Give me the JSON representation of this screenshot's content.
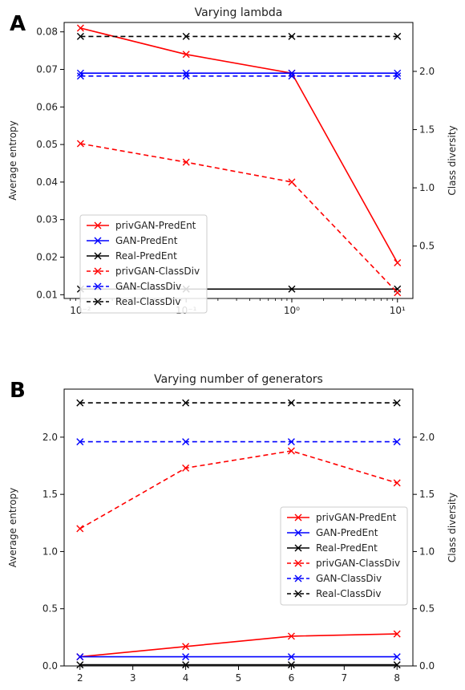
{
  "chart_data": [
    {
      "type": "line",
      "panel_label": "A",
      "title": "Varying lambda",
      "xlabel": "",
      "ylabel": "Average entropy",
      "ylabel_right": "Class diversity",
      "xscale": "log",
      "x": [
        0.01,
        0.1,
        1,
        10
      ],
      "xtick_labels": [
        "10⁻²",
        "10⁻¹",
        "10⁰",
        "10¹"
      ],
      "xlim": [
        0.007,
        14
      ],
      "ylim": [
        0.009,
        0.0825
      ],
      "ylim_right": [
        0.05,
        2.42
      ],
      "yticks": [
        "0.01",
        "0.02",
        "0.03",
        "0.04",
        "0.05",
        "0.06",
        "0.07",
        "0.08"
      ],
      "yticks_right": [
        "0.5",
        "1.0",
        "1.5",
        "2.0"
      ],
      "legend_position": "center-left",
      "grid": false,
      "series": [
        {
          "name": "privGAN-PredEnt",
          "axis": "left",
          "color": "#ff0000",
          "dash": "solid",
          "values": [
            0.081,
            0.074,
            0.069,
            0.0185
          ]
        },
        {
          "name": "GAN-PredEnt",
          "axis": "left",
          "color": "#0000ff",
          "dash": "solid",
          "values": [
            0.069,
            0.069,
            0.069,
            0.069
          ]
        },
        {
          "name": "Real-PredEnt",
          "axis": "left",
          "color": "#000000",
          "dash": "solid",
          "values": [
            0.0115,
            0.0115,
            0.0115,
            0.0115
          ]
        },
        {
          "name": "privGAN-ClassDiv",
          "axis": "right",
          "color": "#ff0000",
          "dash": "dashed",
          "values": [
            1.38,
            1.22,
            1.05,
            0.1
          ]
        },
        {
          "name": "GAN-ClassDiv",
          "axis": "right",
          "color": "#0000ff",
          "dash": "dashed",
          "values": [
            1.96,
            1.96,
            1.96,
            1.96
          ]
        },
        {
          "name": "Real-ClassDiv",
          "axis": "right",
          "color": "#000000",
          "dash": "dashed",
          "values": [
            2.3,
            2.3,
            2.3,
            2.3
          ]
        }
      ]
    },
    {
      "type": "line",
      "panel_label": "B",
      "title": "Varying number of generators",
      "xlabel": "",
      "ylabel": "Average entropy",
      "ylabel_right": "Class diversity",
      "xscale": "linear",
      "x": [
        2,
        4,
        6,
        8
      ],
      "xtick_labels": [
        "2",
        "3",
        "4",
        "5",
        "6",
        "7",
        "8"
      ],
      "xlim": [
        1.7,
        8.3
      ],
      "ylim": [
        0,
        2.42
      ],
      "ylim_right": [
        0,
        2.42
      ],
      "yticks": [
        "0.0",
        "0.5",
        "1.0",
        "1.5",
        "2.0"
      ],
      "yticks_right": [
        "0.0",
        "0.5",
        "1.0",
        "1.5",
        "2.0"
      ],
      "legend_position": "center-right",
      "grid": false,
      "series": [
        {
          "name": "privGAN-PredEnt",
          "axis": "left",
          "color": "#ff0000",
          "dash": "solid",
          "values": [
            0.08,
            0.17,
            0.26,
            0.28
          ]
        },
        {
          "name": "GAN-PredEnt",
          "axis": "left",
          "color": "#0000ff",
          "dash": "solid",
          "values": [
            0.08,
            0.08,
            0.08,
            0.08
          ]
        },
        {
          "name": "Real-PredEnt",
          "axis": "left",
          "color": "#000000",
          "dash": "solid",
          "values": [
            0.01,
            0.01,
            0.01,
            0.01
          ]
        },
        {
          "name": "privGAN-ClassDiv",
          "axis": "right",
          "color": "#ff0000",
          "dash": "dashed",
          "values": [
            1.2,
            1.73,
            1.88,
            1.6
          ]
        },
        {
          "name": "GAN-ClassDiv",
          "axis": "right",
          "color": "#0000ff",
          "dash": "dashed",
          "values": [
            1.96,
            1.96,
            1.96,
            1.96
          ]
        },
        {
          "name": "Real-ClassDiv",
          "axis": "right",
          "color": "#000000",
          "dash": "dashed",
          "values": [
            2.3,
            2.3,
            2.3,
            2.3
          ]
        }
      ]
    }
  ]
}
